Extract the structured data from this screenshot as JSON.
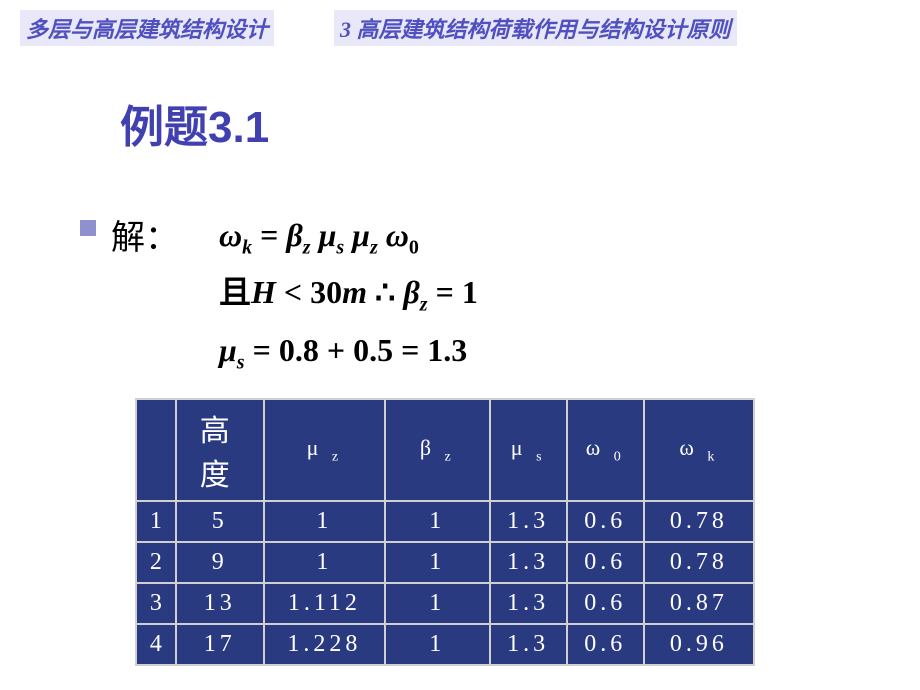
{
  "header": {
    "left": "多层与高层建筑结构设计",
    "right": "3 高层建筑结构荷载作用与结构设计原则"
  },
  "title": "例题3.1",
  "solution_label": "解：",
  "formula": {
    "line1_html": "ω<sub class='sub'>k</sub>  = β<sub class='sub'>z</sub> μ<sub class='sub'>s</sub> μ<sub class='sub'>z</sub> ω<sub class='sub'>0</sub>",
    "line2_prefix": "且",
    "line2_mid": "H < 30m",
    "line2_therefore": "∴",
    "line2_rest": "β<sub class='sub'>z</sub> = 1",
    "line3": "μ<sub class='sub'>s</sub>  = 0.8 + 0.5 = 1.3"
  },
  "table": {
    "columns": {
      "height": "高度",
      "mu_z": "μ",
      "mu_z_sub": "z",
      "beta_z": "β",
      "beta_z_sub": "z",
      "mu_s": "μ",
      "mu_s_sub": "s",
      "w0": "ω",
      "w0_sub": "0",
      "wk": "ω",
      "wk_sub": "k"
    },
    "rows": [
      {
        "idx": "1",
        "height": "5",
        "mu_z": "1",
        "beta_z": "1",
        "mu_s": "1.3",
        "w0": "0.6",
        "wk": "0.78"
      },
      {
        "idx": "2",
        "height": "9",
        "mu_z": "1",
        "beta_z": "1",
        "mu_s": "1.3",
        "w0": "0.6",
        "wk": "0.78"
      },
      {
        "idx": "3",
        "height": "13",
        "mu_z": "1.112",
        "beta_z": "1",
        "mu_s": "1.3",
        "w0": "0.6",
        "wk": "0.87"
      },
      {
        "idx": "4",
        "height": "17",
        "mu_z": "1.228",
        "beta_z": "1",
        "mu_s": "1.3",
        "w0": "0.6",
        "wk": "0.96"
      }
    ],
    "styling": {
      "bg_color": "#2a3a80",
      "border_color": "#d0d0d0",
      "text_color": "#ffffff",
      "header_height_fontsize": 30,
      "header_fontsize": 22,
      "cell_fontsize": 24
    }
  },
  "colors": {
    "header_text": "#5050c0",
    "header_bg": "#e8e8f8",
    "title": "#4040b0",
    "bullet": "#9090d0",
    "page_bg": "#ffffff"
  }
}
